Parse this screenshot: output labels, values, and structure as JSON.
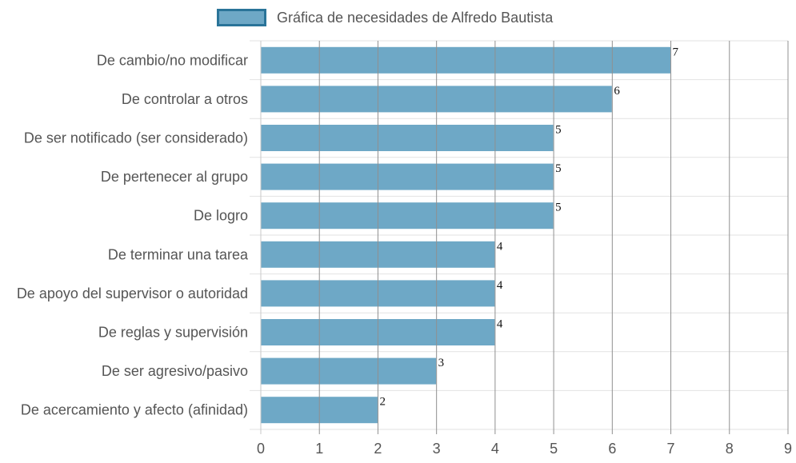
{
  "chart_data": {
    "type": "bar",
    "orientation": "horizontal",
    "series": [
      {
        "name": "Gráfica de necesidades de Alfredo Bautista",
        "color": "#6ea8c6",
        "border_color": "#2a7499"
      }
    ],
    "categories": [
      "De cambio/no modificar",
      "De controlar a otros",
      "De ser notificado (ser considerado)",
      "De pertenecer al grupo",
      "De logro",
      "De terminar una tarea",
      "De apoyo del supervisor o autoridad",
      "De reglas y supervisión",
      "De ser agresivo/pasivo",
      "De acercamiento y afecto (afinidad)"
    ],
    "values": [
      7,
      6,
      5,
      5,
      5,
      4,
      4,
      4,
      3,
      2
    ],
    "xlim": [
      0,
      9
    ],
    "x_ticks": [
      0,
      1,
      2,
      3,
      4,
      5,
      6,
      7,
      8,
      9
    ],
    "grid": true,
    "legend_position": "top-center",
    "data_labels": true
  }
}
